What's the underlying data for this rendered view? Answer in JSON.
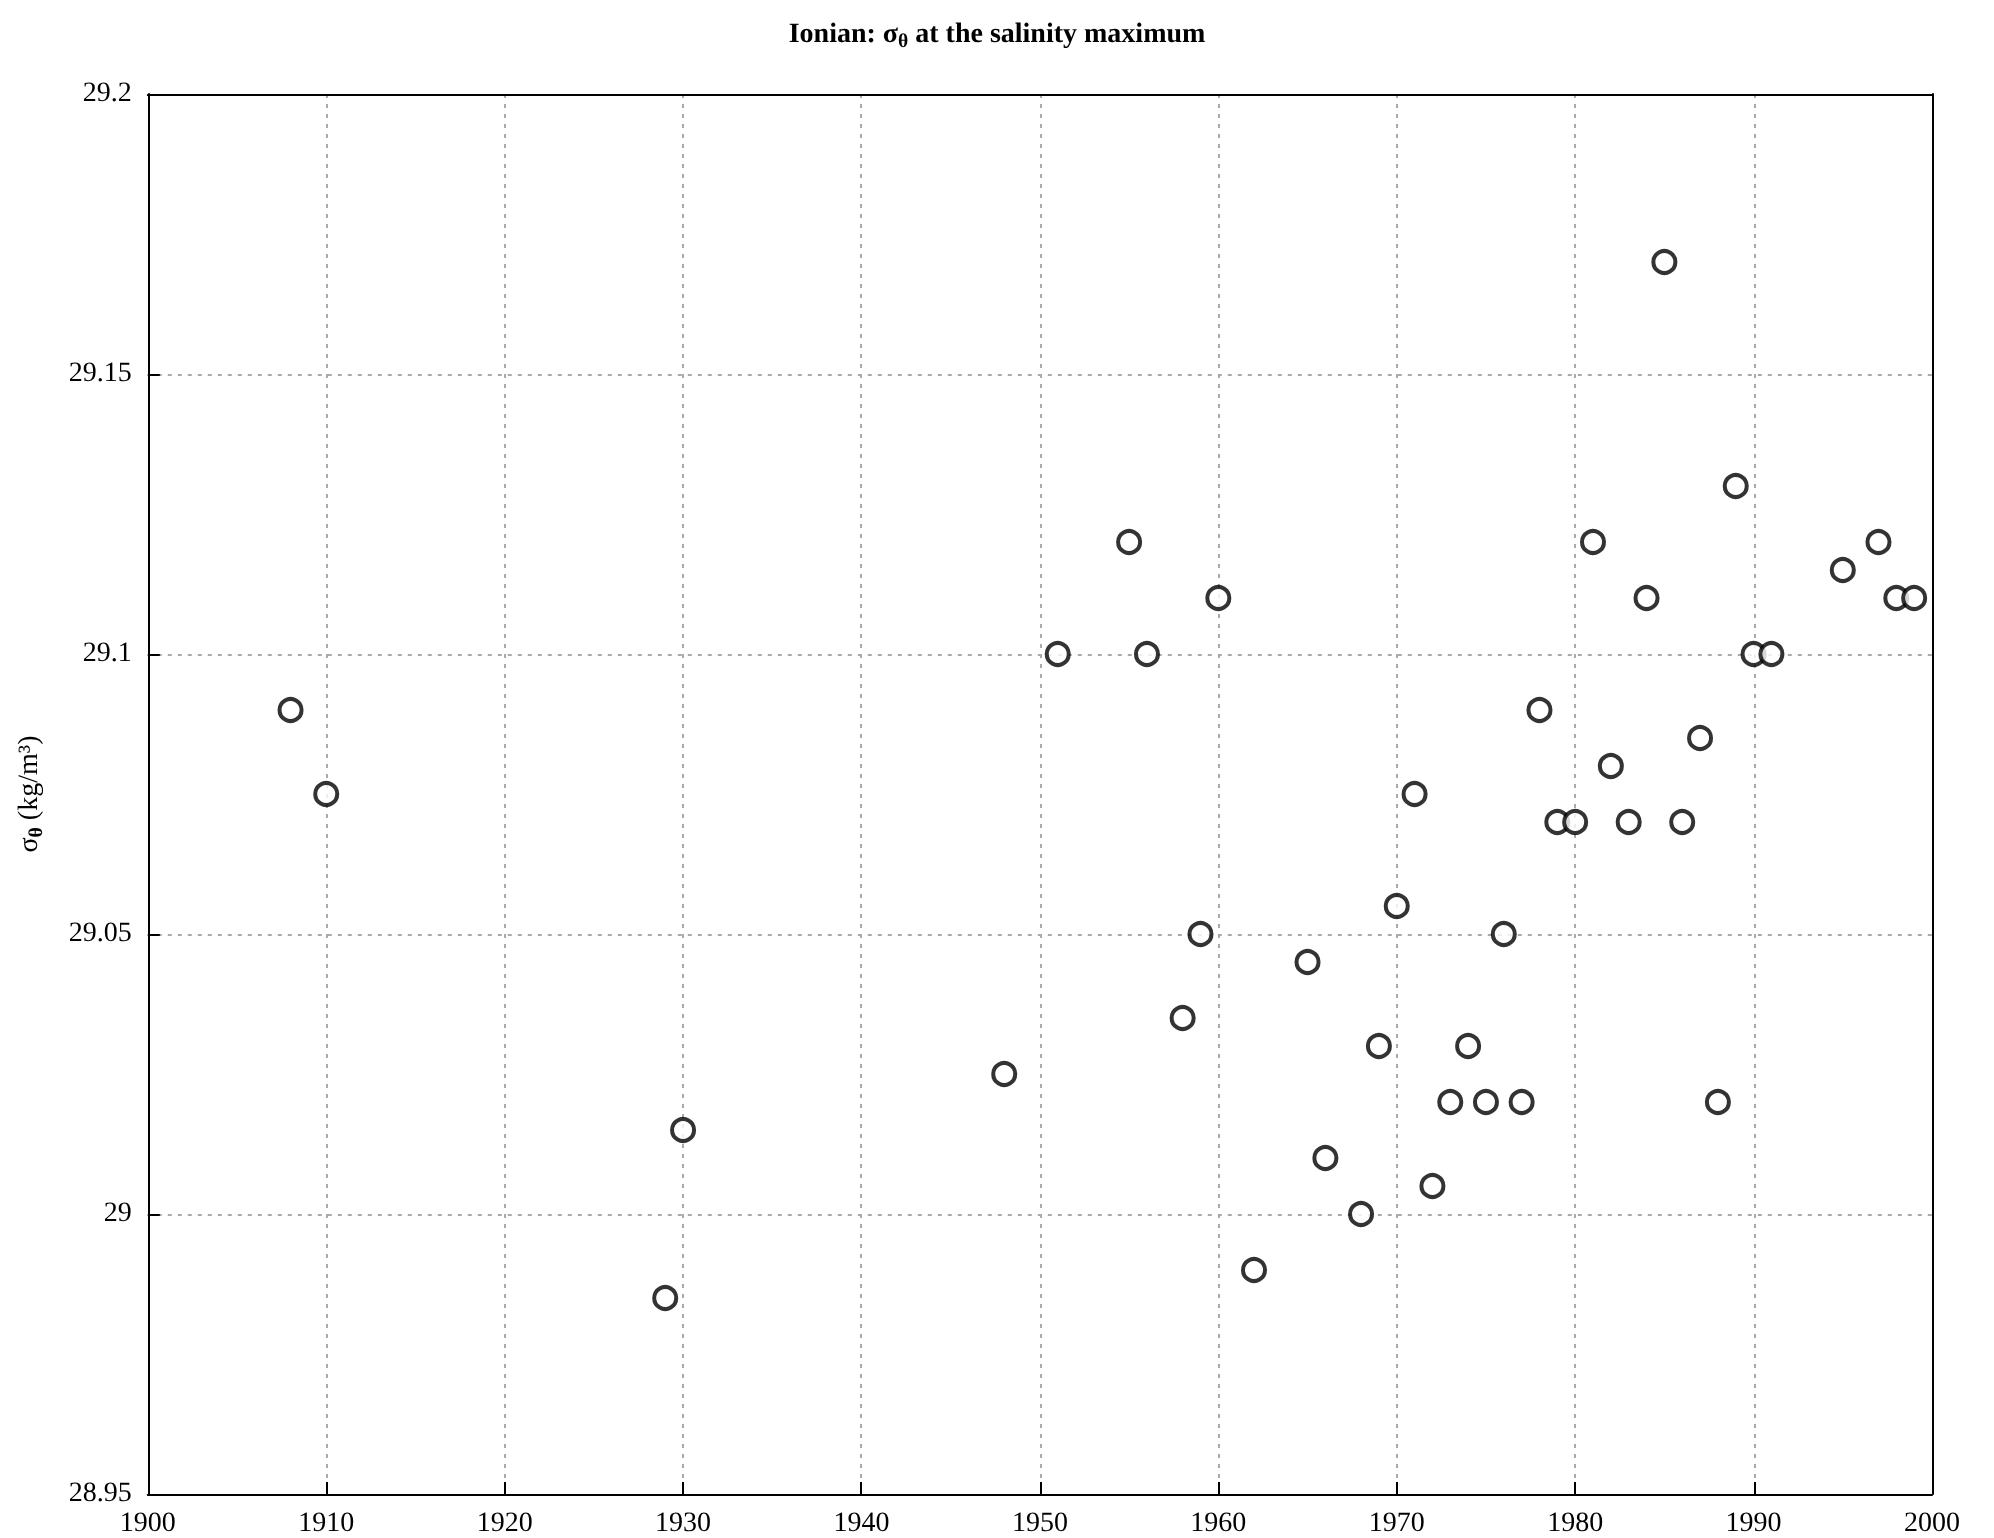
{
  "chart_data": {
    "type": "scatter",
    "title": "Ionian: σ$_{θ}$ at the salinity maximum",
    "ylabel": "σ$_{θ}$ (kg/m³)",
    "x": [
      1908,
      1910,
      1929,
      1930,
      1948,
      1951,
      1955,
      1956,
      1958,
      1959,
      1960,
      1962,
      1965,
      1966,
      1968,
      1969,
      1970,
      1971,
      1972,
      1973,
      1974,
      1975,
      1976,
      1977,
      1978,
      1979,
      1980,
      1981,
      1982,
      1983,
      1984,
      1985,
      1986,
      1987,
      1988,
      1989,
      1990,
      1991,
      1995,
      1997,
      1998,
      1999
    ],
    "series": [
      {
        "color": "#000000",
        "values": [
          29.09,
          29.075,
          28.985,
          29.015,
          29.025,
          29.1,
          29.12,
          29.1,
          29.035,
          29.05,
          29.11,
          28.99,
          29.045,
          29.01,
          29.0,
          29.03,
          29.055,
          29.075,
          29.005,
          29.02,
          29.03,
          29.02,
          29.05,
          29.02,
          29.09,
          29.07,
          29.07,
          29.12,
          29.08,
          29.07,
          29.11,
          29.17,
          29.07,
          29.085,
          29.02,
          29.13,
          29.1,
          29.1,
          29.115,
          29.12,
          29.11,
          29.11
        ]
      }
    ],
    "xlim": [
      1900,
      2000
    ],
    "xticks": [
      1900,
      1910,
      1920,
      1930,
      1940,
      1950,
      1960,
      1970,
      1980,
      1990,
      2000
    ],
    "ylim": [
      28.95,
      29.2
    ],
    "yticks": [
      28.95,
      29,
      29.05,
      29.1,
      29.15,
      29.2
    ],
    "grid": true,
    "marker": "circle"
  }
}
